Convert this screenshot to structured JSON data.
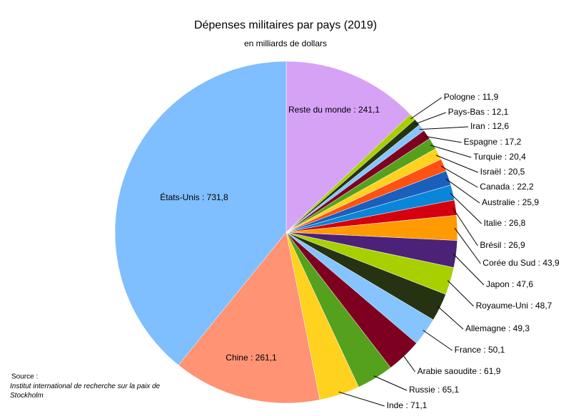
{
  "chart_data": {
    "type": "pie",
    "title": "Dépenses militaires par pays (2019)",
    "subtitle": "en milliards de dollars",
    "source_heading": "Source :",
    "source": "Institut international de recherche sur la paix de Stockholm",
    "values": [
      241.1,
      11.9,
      12.1,
      12.6,
      17.2,
      20.4,
      20.5,
      22.2,
      25.9,
      26.8,
      26.9,
      43.9,
      47.6,
      48.7,
      49.3,
      50.1,
      61.9,
      65.1,
      71.1,
      261.1,
      731.8
    ],
    "value_labels": [
      "Reste du monde : 241,1",
      "Pologne : 11,9",
      "Pays-Bas : 12,1",
      "Iran : 12,6",
      "Espagne : 17,2",
      "Turquie : 20,4",
      "Israël : 20,5",
      "Canada : 22,2",
      "Australie : 25,9",
      "Italie : 26,8",
      "Brésil : 26,9",
      "Corée du Sud : 43,9",
      "Japon : 47,6",
      "Royaume-Uni : 48,7",
      "Allemagne : 49,3",
      "France : 50,1",
      "Arabie saoudite : 61,9",
      "Russie : 65,1",
      "Inde : 71,1",
      "Chine : 261,1",
      "États-Unis : 731,8"
    ],
    "colors": [
      "#d6a2f6",
      "#a8cf00",
      "#263312",
      "#85c4ff",
      "#7e0020",
      "#55a11e",
      "#ffd21f",
      "#ff5112",
      "#1b5fbd",
      "#0a86d8",
      "#d4000f",
      "#ff9b00",
      "#4b2278",
      "#a8cf00",
      "#263312",
      "#85c4ff",
      "#7e0020",
      "#55a11e",
      "#ffd21f",
      "#ff9373",
      "#7fbeff"
    ]
  }
}
